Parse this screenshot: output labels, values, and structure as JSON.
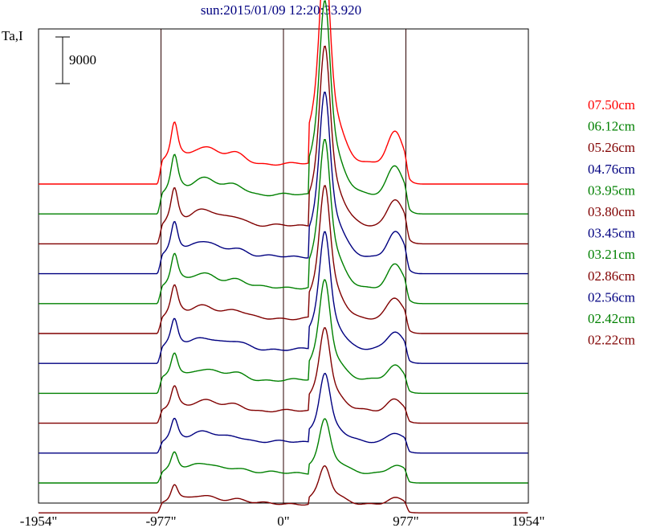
{
  "chart_data": {
    "type": "line",
    "title": "sun:2015/01/09 12:20:33.920",
    "ylabel": "Ta,I",
    "scale_bar_label": "9000",
    "xlim": [
      -1954,
      1954
    ],
    "x_ticks": [
      {
        "value": -1954,
        "label": "-1954\""
      },
      {
        "value": -977,
        "label": "-977\""
      },
      {
        "value": 0,
        "label": "0\""
      },
      {
        "value": 977,
        "label": "977\""
      },
      {
        "value": 1954,
        "label": "1954\""
      }
    ],
    "vertical_lines": [
      -977,
      0,
      977
    ],
    "legend_placement": "right",
    "series": [
      {
        "name": "07.50cm",
        "color": "#ff0000"
      },
      {
        "name": "06.12cm",
        "color": "#008000"
      },
      {
        "name": "05.26cm",
        "color": "#800000"
      },
      {
        "name": "04.76cm",
        "color": "#000080"
      },
      {
        "name": "03.95cm",
        "color": "#008000"
      },
      {
        "name": "03.80cm",
        "color": "#800000"
      },
      {
        "name": "03.45cm",
        "color": "#000080"
      },
      {
        "name": "03.21cm",
        "color": "#008000"
      },
      {
        "name": "02.86cm",
        "color": "#800000"
      },
      {
        "name": "02.56cm",
        "color": "#000080"
      },
      {
        "name": "02.42cm",
        "color": "#008000"
      },
      {
        "name": "02.22cm",
        "color": "#800000"
      }
    ]
  }
}
